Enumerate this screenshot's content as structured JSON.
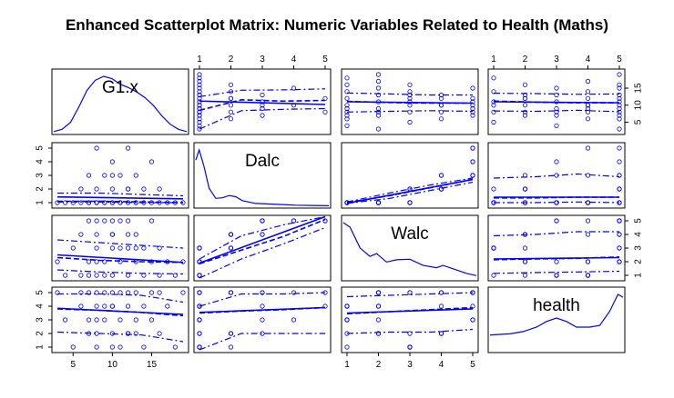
{
  "title": "Enhanced Scatterplot Matrix: Numeric Variables Related to Health (Maths)",
  "colors": {
    "series": "#0000ff",
    "frame": "#000000",
    "background": "#ffffff"
  },
  "chart_data": {
    "type": "scatter",
    "subtype": "scatterplot-matrix",
    "title": "Enhanced Scatterplot Matrix: Numeric Variables Related to Health (Maths)",
    "variables": [
      {
        "name": "G1.x",
        "range": [
          3,
          19
        ],
        "ticks": [
          "5",
          "10",
          "15"
        ]
      },
      {
        "name": "Dalc",
        "range": [
          1,
          5
        ],
        "ticks": [
          "1",
          "2",
          "3",
          "4",
          "5"
        ]
      },
      {
        "name": "Walc",
        "range": [
          1,
          5
        ],
        "ticks": [
          "1",
          "2",
          "3",
          "4",
          "5"
        ]
      },
      {
        "name": "health",
        "range": [
          1,
          5
        ],
        "ticks": [
          "1",
          "2",
          "3",
          "4",
          "5"
        ]
      }
    ],
    "diagonal": "density",
    "density": {
      "G1.x": {
        "x": [
          3,
          4,
          5,
          6,
          7,
          8,
          9,
          10,
          11,
          12,
          13,
          14,
          15,
          16,
          17,
          18,
          19
        ],
        "y": [
          0.02,
          0.06,
          0.18,
          0.45,
          0.75,
          0.93,
          1.0,
          0.96,
          0.86,
          0.8,
          0.72,
          0.62,
          0.48,
          0.3,
          0.15,
          0.06,
          0.02
        ]
      },
      "Dalc": {
        "x": [
          1,
          1.1,
          1.25,
          1.4,
          1.6,
          1.8,
          2,
          2.2,
          2.4,
          2.8,
          3.2,
          3.6,
          4,
          4.5,
          5
        ],
        "y": [
          0.82,
          1.0,
          0.7,
          0.32,
          0.14,
          0.15,
          0.19,
          0.17,
          0.1,
          0.05,
          0.04,
          0.03,
          0.02,
          0.015,
          0.01
        ]
      },
      "Walc": {
        "x": [
          1,
          1.2,
          1.5,
          1.8,
          2,
          2.3,
          2.6,
          3,
          3.4,
          3.8,
          4,
          4.4,
          4.7,
          5
        ],
        "y": [
          1.0,
          0.92,
          0.55,
          0.4,
          0.45,
          0.3,
          0.34,
          0.35,
          0.24,
          0.2,
          0.24,
          0.16,
          0.1,
          0.06
        ]
      },
      "health": {
        "x": [
          1,
          1.3,
          1.6,
          2,
          2.4,
          2.7,
          3,
          3.3,
          3.6,
          4,
          4.3,
          4.6,
          4.85,
          5
        ],
        "y": [
          0.28,
          0.29,
          0.3,
          0.34,
          0.42,
          0.52,
          0.58,
          0.52,
          0.42,
          0.42,
          0.45,
          0.7,
          1.0,
          0.95
        ]
      }
    },
    "points": {
      "G1.x": [
        3,
        4,
        5,
        6,
        6,
        7,
        7,
        7,
        8,
        8,
        8,
        8,
        9,
        9,
        9,
        10,
        10,
        10,
        10,
        11,
        11,
        11,
        12,
        12,
        12,
        13,
        13,
        13,
        14,
        14,
        15,
        15,
        16,
        16,
        17,
        18,
        19,
        8,
        10,
        12
      ],
      "Dalc": [
        1,
        1,
        1,
        2,
        1,
        1,
        3,
        1,
        1,
        2,
        5,
        1,
        3,
        1,
        1,
        1,
        4,
        2,
        1,
        3,
        1,
        1,
        2,
        1,
        5,
        1,
        3,
        1,
        2,
        1,
        1,
        4,
        1,
        2,
        1,
        1,
        1,
        1,
        3,
        2
      ],
      "Walc": [
        2,
        1,
        3,
        4,
        1,
        2,
        5,
        1,
        3,
        4,
        5,
        2,
        5,
        1,
        2,
        3,
        5,
        4,
        1,
        5,
        2,
        3,
        4,
        1,
        5,
        2,
        4,
        3,
        3,
        1,
        2,
        5,
        1,
        3,
        2,
        1,
        2,
        1,
        4,
        3
      ],
      "health": [
        5,
        3,
        1,
        5,
        4,
        2,
        5,
        3,
        1,
        5,
        4,
        2,
        5,
        3,
        4,
        1,
        5,
        2,
        4,
        3,
        5,
        1,
        2,
        4,
        5,
        3,
        2,
        5,
        1,
        4,
        5,
        3,
        2,
        5,
        4,
        1,
        5,
        3,
        4,
        2
      ]
    },
    "fits": {
      "G1.x|Dalc": {
        "linear": [
          1.42,
          1.28
        ],
        "smooth": [
          1.1,
          1.1,
          1.05,
          1.0
        ],
        "spread_hi": [
          1.7,
          1.7,
          1.6,
          1.5
        ],
        "spread_lo": [
          1.05,
          1.05,
          1.0,
          1.0
        ]
      },
      "G1.x|Walc": {
        "linear": [
          2.5,
          1.95
        ],
        "smooth": [
          2.3,
          2.1,
          2.0,
          1.95
        ],
        "spread_hi": [
          3.6,
          3.4,
          3.2,
          3.0
        ],
        "spread_lo": [
          1.4,
          1.25,
          1.15,
          1.1
        ]
      },
      "G1.x|health": {
        "linear": [
          3.85,
          3.4
        ],
        "smooth": [
          3.8,
          3.7,
          3.55,
          3.3
        ],
        "spread_hi": [
          4.9,
          4.9,
          4.8,
          4.3
        ],
        "spread_lo": [
          2.1,
          2.0,
          1.9,
          1.4
        ]
      },
      "Dalc|G1.x": {
        "linear": [
          11.2,
          10.2
        ],
        "smooth": [
          8.5,
          11.6,
          11.2,
          11.4
        ],
        "spread_hi": [
          12.5,
          14.4,
          14.5,
          14.8
        ],
        "spread_lo": [
          3.0,
          8.4,
          8.8,
          9.0
        ]
      },
      "Dalc|Walc": {
        "linear": [
          1.9,
          5.3
        ],
        "smooth": [
          1.85,
          2.85,
          3.85,
          5.1
        ],
        "spread_hi": [
          2.2,
          3.9,
          4.7,
          5.3
        ],
        "spread_lo": [
          0.8,
          2.2,
          3.3,
          4.5
        ]
      },
      "Dalc|health": {
        "linear": [
          3.55,
          3.9
        ],
        "smooth": [
          3.5,
          3.65,
          3.75,
          3.9
        ],
        "spread_hi": [
          4.0,
          4.9,
          4.9,
          5.0
        ],
        "spread_lo": [
          0.8,
          2.0,
          2.0,
          2.0
        ]
      },
      "Walc|G1.x": {
        "linear": [
          11.0,
          10.6
        ],
        "smooth": [
          11.1,
          10.8,
          10.6,
          10.6
        ],
        "spread_hi": [
          13.6,
          13.3,
          13.0,
          13.0
        ],
        "spread_lo": [
          8.0,
          8.2,
          8.4,
          8.2
        ]
      },
      "Walc|Dalc": {
        "linear": [
          0.95,
          2.7
        ],
        "smooth": [
          1.0,
          1.5,
          2.1,
          2.7
        ],
        "spread_hi": [
          1.05,
          1.7,
          2.3,
          2.8
        ],
        "spread_lo": [
          0.95,
          1.3,
          1.9,
          2.5
        ]
      },
      "Walc|health": {
        "linear": [
          3.5,
          3.8
        ],
        "smooth": [
          3.45,
          3.6,
          3.75,
          3.9
        ],
        "spread_hi": [
          4.7,
          4.8,
          4.9,
          5.0
        ],
        "spread_lo": [
          2.0,
          2.1,
          2.1,
          2.3
        ]
      },
      "health|G1.x": {
        "linear": [
          11.0,
          10.7
        ],
        "smooth": [
          11.2,
          10.9,
          10.7,
          10.7
        ],
        "spread_hi": [
          13.5,
          13.4,
          13.2,
          13.3
        ],
        "spread_lo": [
          8.3,
          8.2,
          8.5,
          8.1
        ]
      },
      "health|Dalc": {
        "linear": [
          1.4,
          1.4
        ],
        "smooth": [
          1.35,
          1.35,
          1.4,
          1.4
        ],
        "spread_hi": [
          2.8,
          2.9,
          3.1,
          2.9
        ],
        "spread_lo": [
          1.0,
          1.0,
          1.05,
          1.0
        ]
      },
      "health|Walc": {
        "linear": [
          2.2,
          2.3
        ],
        "smooth": [
          2.15,
          2.2,
          2.25,
          2.35
        ],
        "spread_hi": [
          3.9,
          4.0,
          4.2,
          4.2
        ],
        "spread_lo": [
          1.15,
          1.2,
          1.25,
          1.3
        ]
      }
    },
    "grid": false,
    "legend": "none"
  }
}
